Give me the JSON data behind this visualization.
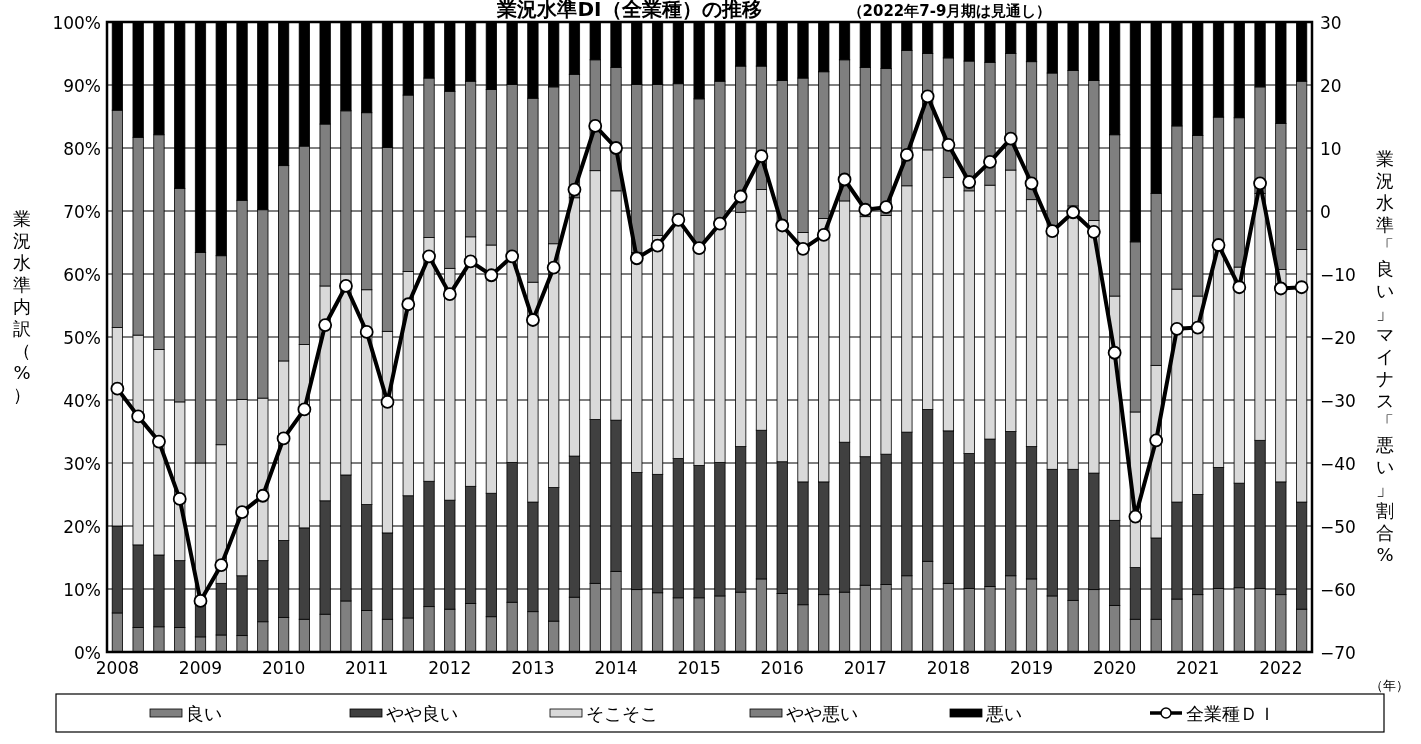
{
  "chart_data": {
    "type": "bar",
    "stacked": true,
    "title": "業況水準DI（全業種）の推移",
    "subtitle": "（2022年7-9月期は見通し）",
    "ylabel": "業況水準内訳（%）",
    "y2label": "業況水準「良い」マイナス「悪い」割合%",
    "annotations": [
      "（年）"
    ],
    "categories": [
      "2008",
      null,
      null,
      null,
      "2009",
      null,
      null,
      null,
      "2010",
      null,
      null,
      null,
      "2011",
      null,
      null,
      null,
      "2012",
      null,
      null,
      null,
      "2013",
      null,
      null,
      null,
      "2014",
      null,
      null,
      null,
      "2015",
      null,
      null,
      null,
      "2016",
      null,
      null,
      null,
      "2017",
      null,
      null,
      null,
      "2018",
      null,
      null,
      null,
      "2019",
      null,
      null,
      null,
      "2020",
      null,
      null,
      null,
      "2021",
      null,
      null,
      null,
      "2022",
      null
    ],
    "ylim": [
      0,
      100
    ],
    "yticks": [
      {
        "value": 0,
        "label": "0%"
      },
      {
        "value": 10,
        "label": "10%"
      },
      {
        "value": 20,
        "label": "20%"
      },
      {
        "value": 30,
        "label": "30%"
      },
      {
        "value": 40,
        "label": "40%"
      },
      {
        "value": 50,
        "label": "50%"
      },
      {
        "value": 60,
        "label": "60%"
      },
      {
        "value": 70,
        "label": "70%"
      },
      {
        "value": 80,
        "label": "80%"
      },
      {
        "value": 90,
        "label": "90%"
      },
      {
        "value": 100,
        "label": "100%"
      }
    ],
    "y2lim": [
      -70,
      30
    ],
    "y2ticks": [
      -70,
      -60,
      -50,
      -40,
      -30,
      -20,
      -10,
      0,
      10,
      20,
      30
    ],
    "grid": "y",
    "legend": "bottom",
    "series": [
      {
        "name": "良い",
        "color": "#808080",
        "values": [
          6.2,
          3.9,
          4.0,
          3.9,
          2.4,
          2.7,
          2.6,
          4.8,
          5.5,
          5.2,
          6.0,
          8.1,
          6.6,
          5.2,
          5.4,
          7.2,
          6.8,
          7.7,
          5.6,
          7.9,
          6.4,
          4.9,
          8.7,
          10.9,
          12.8,
          9.9,
          9.4,
          8.6,
          8.6,
          8.9,
          9.5,
          11.6,
          9.3,
          7.5,
          9.1,
          9.5,
          10.6,
          10.7,
          12.1,
          14.4,
          10.9,
          10.1,
          10.4,
          12.1,
          11.6,
          8.9,
          8.2,
          9.9,
          7.4,
          5.2,
          5.2,
          8.4,
          9.1,
          10.1,
          10.2,
          10.1,
          9.1,
          6.8
        ]
      },
      {
        "name": "やや良い",
        "color": "#404040",
        "values": [
          13.8,
          13.1,
          11.4,
          10.6,
          5.3,
          8.2,
          9.5,
          9.7,
          12.2,
          14.5,
          18.0,
          20.0,
          16.8,
          13.7,
          19.4,
          19.9,
          17.3,
          18.6,
          19.6,
          22.2,
          17.4,
          21.2,
          22.4,
          26.0,
          24.0,
          18.6,
          18.8,
          22.1,
          21.0,
          21.2,
          23.1,
          23.6,
          20.9,
          19.5,
          17.9,
          23.8,
          20.4,
          20.7,
          22.8,
          24.1,
          24.2,
          21.4,
          23.4,
          22.9,
          21.0,
          20.1,
          20.8,
          18.5,
          13.5,
          8.2,
          12.9,
          15.4,
          15.9,
          19.2,
          16.6,
          23.5,
          17.9,
          17.0
        ]
      },
      {
        "name": "そこそこ",
        "color": "#d9d9d9",
        "values": [
          31.5,
          33.3,
          32.6,
          25.2,
          22.3,
          22.0,
          28.0,
          25.8,
          28.5,
          29.1,
          34.1,
          31.9,
          34.1,
          32.0,
          35.6,
          38.7,
          36.8,
          39.6,
          39.4,
          32.3,
          34.9,
          38.7,
          41.0,
          39.5,
          36.4,
          34.9,
          37.9,
          37.8,
          34.2,
          37.7,
          37.2,
          38.2,
          36.9,
          39.6,
          41.8,
          38.3,
          38.1,
          37.9,
          39.1,
          41.2,
          40.2,
          41.7,
          40.3,
          41.5,
          39.2,
          37.8,
          41.8,
          40.1,
          35.6,
          24.7,
          27.4,
          33.8,
          31.5,
          35.5,
          34.3,
          39.2,
          33.7,
          40.1
        ]
      },
      {
        "name": "やや悪い",
        "color": "#7f7f7f",
        "values": [
          34.5,
          31.4,
          34.1,
          33.9,
          33.4,
          30.0,
          31.6,
          29.9,
          31.0,
          31.5,
          25.7,
          25.9,
          28.1,
          29.2,
          28.0,
          25.3,
          28.1,
          24.7,
          24.7,
          27.7,
          29.2,
          24.9,
          19.6,
          17.6,
          19.6,
          26.7,
          24.0,
          21.7,
          24.0,
          22.8,
          23.2,
          19.6,
          23.6,
          24.5,
          23.3,
          22.4,
          23.7,
          23.3,
          21.5,
          15.3,
          19.0,
          20.6,
          19.5,
          18.5,
          21.9,
          25.1,
          21.5,
          22.2,
          25.6,
          27.0,
          27.3,
          25.9,
          25.5,
          20.1,
          23.7,
          16.9,
          23.2,
          26.7
        ]
      },
      {
        "name": "悪い",
        "color": "#000000",
        "values": [
          14.0,
          18.3,
          17.9,
          26.4,
          36.6,
          37.1,
          28.3,
          29.8,
          22.8,
          19.7,
          16.2,
          14.1,
          14.4,
          19.9,
          11.6,
          8.9,
          11.0,
          9.4,
          10.7,
          9.9,
          12.1,
          10.3,
          8.3,
          6.0,
          7.2,
          9.9,
          9.9,
          9.8,
          12.2,
          9.4,
          7.0,
          7.0,
          9.3,
          8.9,
          7.9,
          6.0,
          7.2,
          7.4,
          4.5,
          5.0,
          5.7,
          6.2,
          6.4,
          5.0,
          6.3,
          8.1,
          7.7,
          9.3,
          17.9,
          34.9,
          27.2,
          16.5,
          18.0,
          15.1,
          15.2,
          10.3,
          16.1,
          9.4
        ]
      },
      {
        "name": "全業種ＤＩ",
        "type": "line",
        "axis": "y2",
        "color": "#000000",
        "marker": "circle",
        "line_style": "solid",
        "values": [
          -28.2,
          -32.6,
          -36.6,
          -45.7,
          -61.9,
          -56.2,
          -47.8,
          -45.2,
          -36.1,
          -31.5,
          -18.1,
          -11.9,
          -19.2,
          -30.3,
          -14.8,
          -7.2,
          -13.2,
          -8.0,
          -10.2,
          -7.2,
          -17.3,
          -9.0,
          3.4,
          13.5,
          10.0,
          -7.5,
          -5.5,
          -1.4,
          -5.9,
          -2.0,
          2.3,
          8.7,
          -2.3,
          -6.0,
          -3.8,
          5.0,
          0.2,
          0.6,
          8.9,
          18.2,
          10.5,
          4.6,
          7.8,
          11.5,
          4.4,
          -3.2,
          -0.2,
          -3.3,
          -22.5,
          -48.5,
          -36.4,
          -18.7,
          -18.5,
          -5.4,
          -12.1,
          4.4,
          -12.3,
          -12.1
        ]
      }
    ]
  }
}
